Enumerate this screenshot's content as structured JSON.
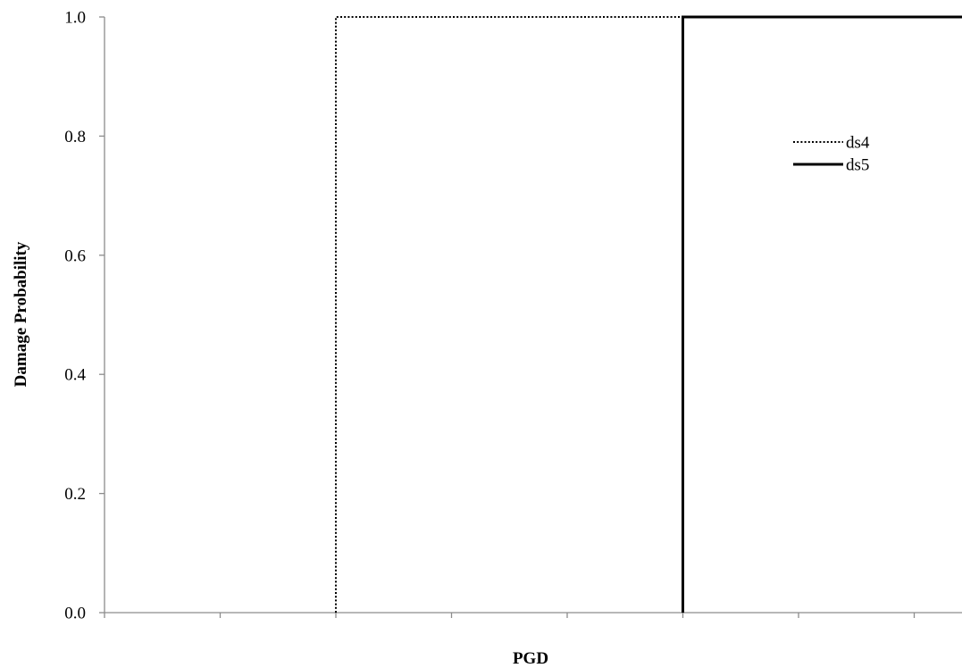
{
  "chart_data": {
    "type": "line",
    "title": "",
    "xlabel": "PGD",
    "ylabel": "Damage Probability",
    "x_ticks": [
      0,
      1,
      2,
      3,
      4,
      5,
      6,
      7
    ],
    "xlim": [
      0,
      7.5
    ],
    "ylim": [
      0,
      1.0
    ],
    "y_ticks": [
      0.0,
      0.2,
      0.4,
      0.6,
      0.8,
      1.0
    ],
    "y_tick_labels": [
      "0.0",
      "0.2",
      "0.4",
      "0.6",
      "0.8",
      "1.0"
    ],
    "grid": false,
    "legend_position": "top-right",
    "series": [
      {
        "name": "ds4",
        "style": "dotted",
        "color": "#000000",
        "points": [
          [
            2,
            0
          ],
          [
            2,
            1
          ],
          [
            5,
            1
          ]
        ]
      },
      {
        "name": "ds5",
        "style": "solid",
        "color": "#000000",
        "points": [
          [
            5,
            0
          ],
          [
            5,
            1
          ],
          [
            7.5,
            1
          ]
        ]
      }
    ]
  }
}
